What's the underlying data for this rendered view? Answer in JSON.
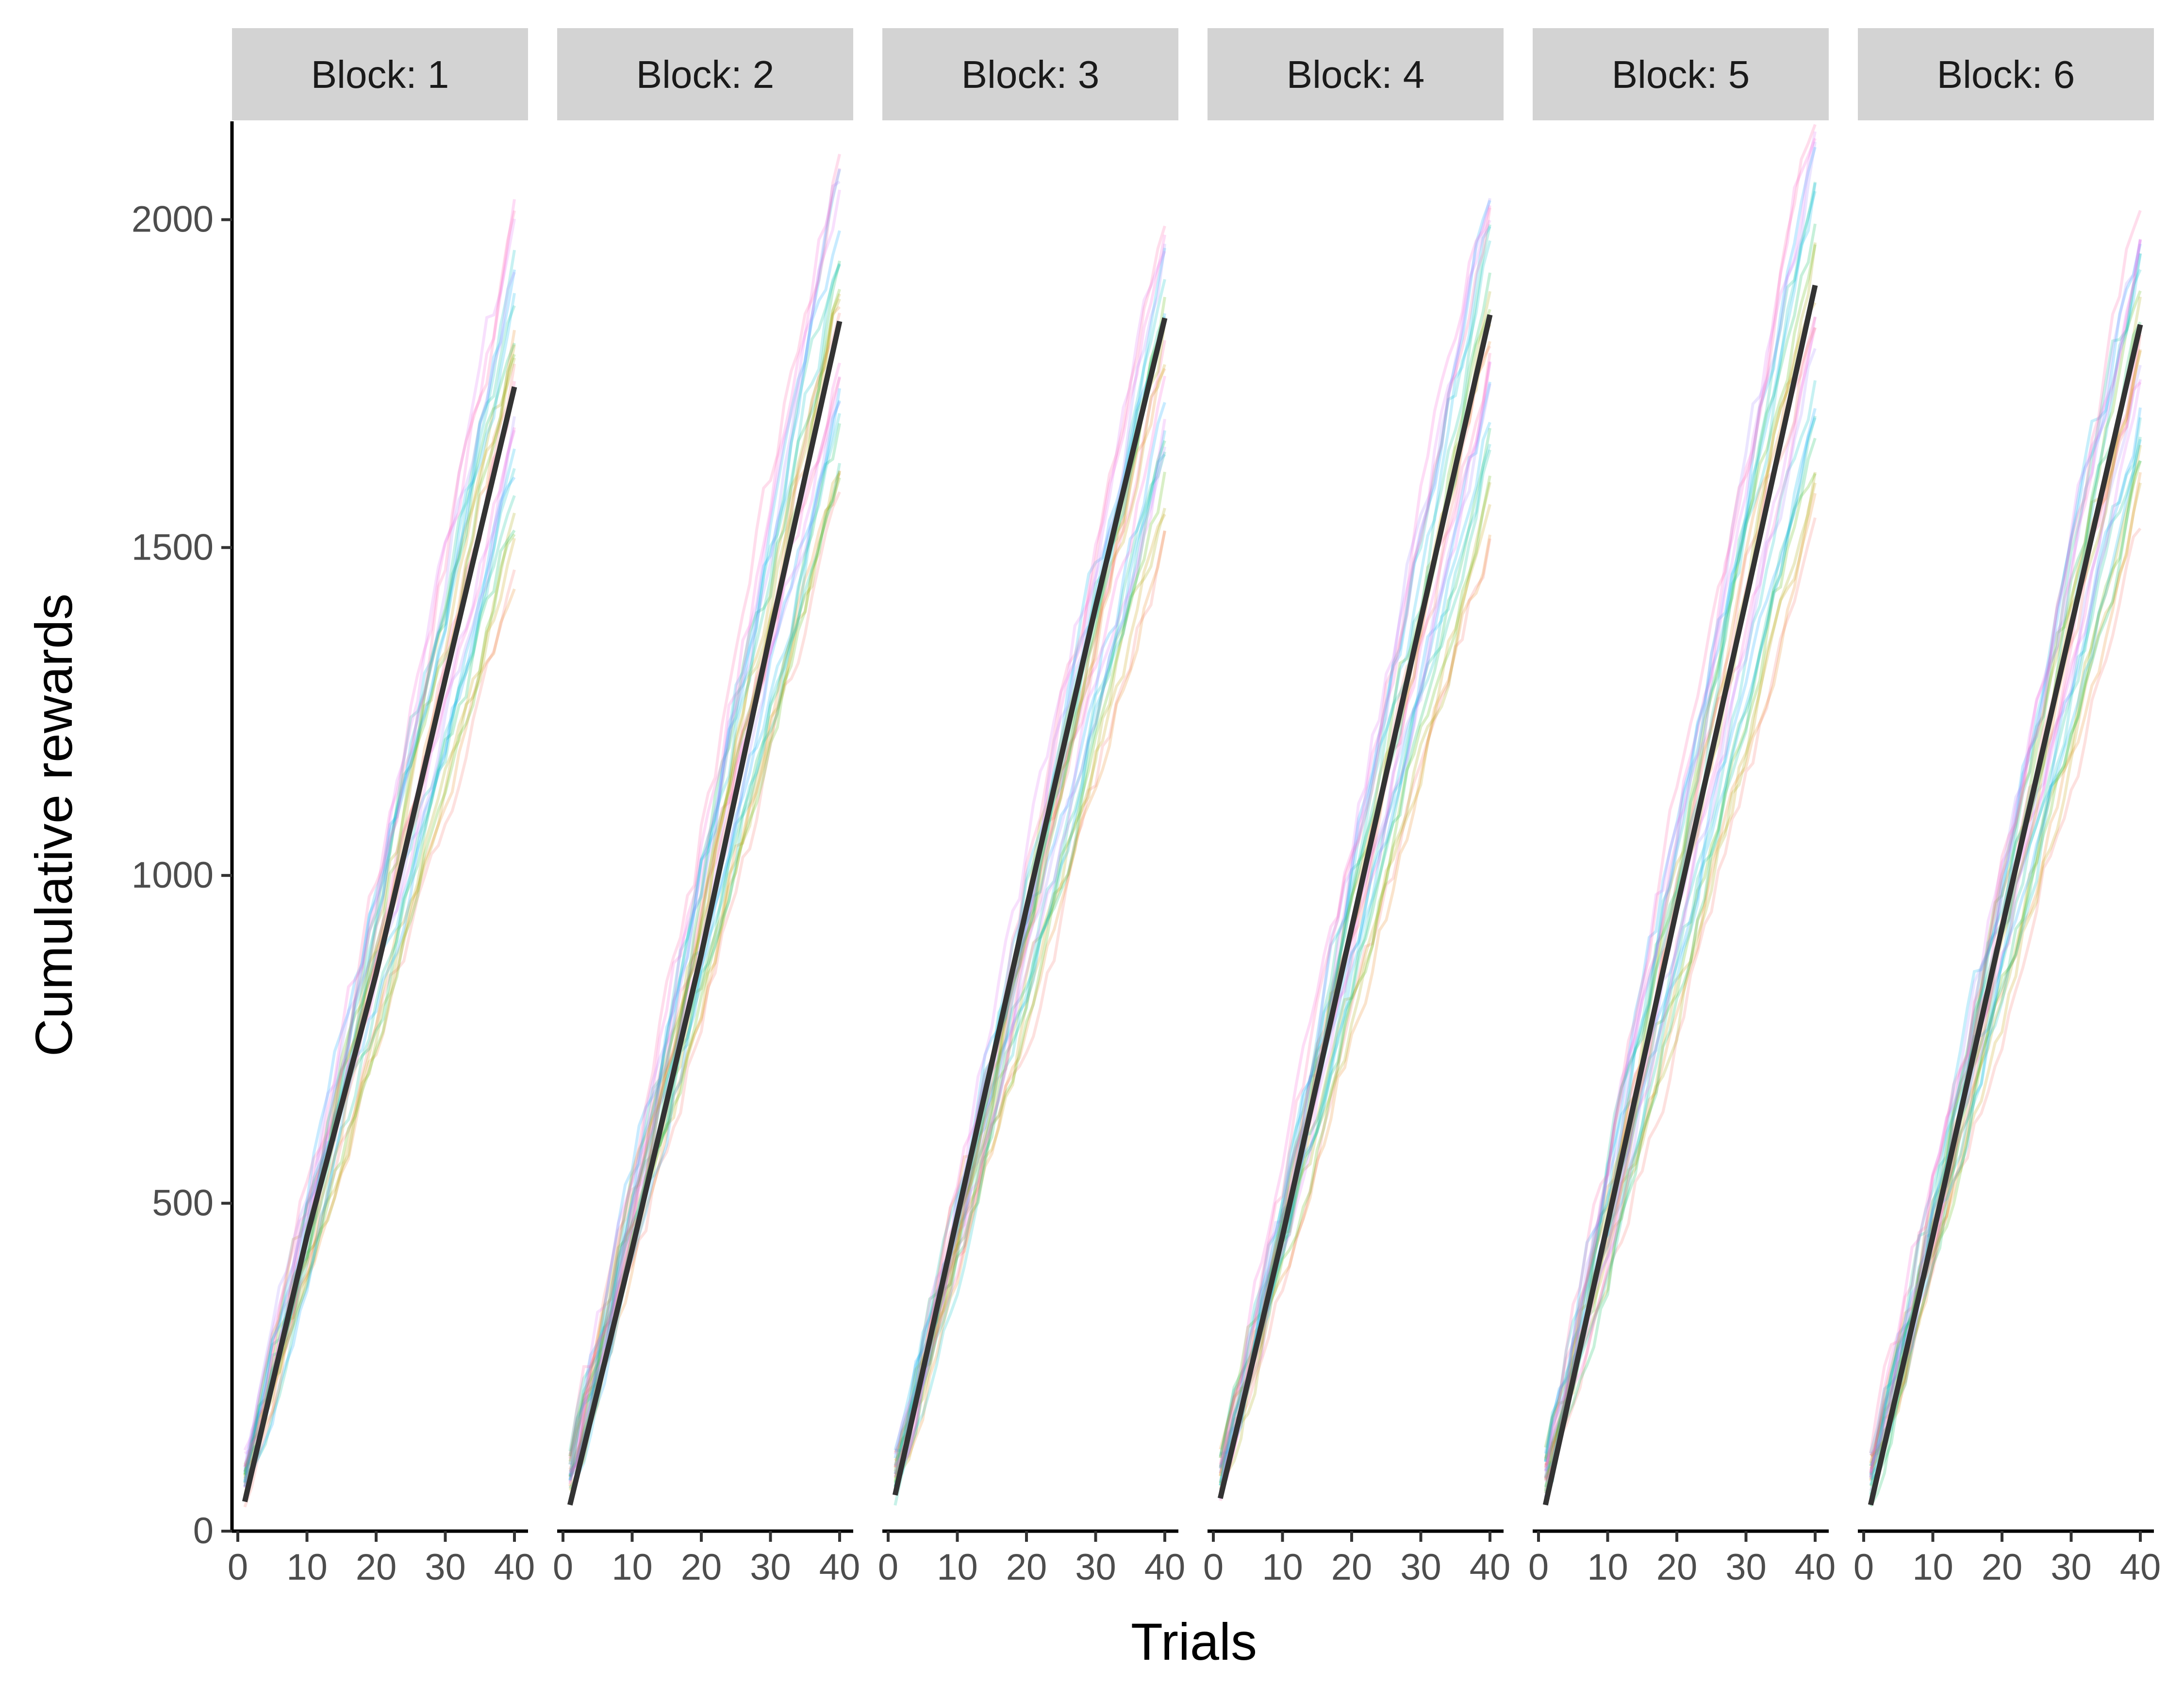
{
  "chart_data": {
    "type": "line",
    "title": "",
    "xlabel": "Trials",
    "ylabel": "Cumulative rewards",
    "xlim": [
      0,
      40
    ],
    "ylim": [
      0,
      2150
    ],
    "x_ticks": [
      0,
      10,
      20,
      30,
      40
    ],
    "y_ticks": [
      0,
      500,
      1000,
      1500,
      2000
    ],
    "grid": false,
    "legend": "none",
    "facet_label_prefix": "Block: ",
    "mean_line_color": "#333333",
    "strip_color": "#d3d3d3",
    "panels": [
      {
        "label": "Block: 1",
        "mean": {
          "x": [
            1,
            10,
            20,
            30,
            40
          ],
          "y": [
            45,
            450,
            850,
            1300,
            1745
          ]
        },
        "participants_end_range": [
          1440,
          2000
        ]
      },
      {
        "label": "Block: 2",
        "mean": {
          "x": [
            1,
            10,
            20,
            30,
            40
          ],
          "y": [
            40,
            430,
            880,
            1370,
            1845
          ]
        },
        "participants_end_range": [
          1540,
          2100
        ]
      },
      {
        "label": "Block: 3",
        "mean": {
          "x": [
            1,
            10,
            20,
            30,
            40
          ],
          "y": [
            55,
            480,
            950,
            1410,
            1850
          ]
        },
        "participants_end_range": [
          1520,
          2000
        ]
      },
      {
        "label": "Block: 4",
        "mean": {
          "x": [
            1,
            10,
            20,
            30,
            40
          ],
          "y": [
            50,
            450,
            920,
            1390,
            1855
          ]
        },
        "participants_end_range": [
          1500,
          2080
        ]
      },
      {
        "label": "Block: 5",
        "mean": {
          "x": [
            1,
            10,
            20,
            30,
            40
          ],
          "y": [
            40,
            470,
            950,
            1420,
            1900
          ]
        },
        "participants_end_range": [
          1520,
          2200
        ]
      },
      {
        "label": "Block: 6",
        "mean": {
          "x": [
            1,
            10,
            20,
            30,
            40
          ],
          "y": [
            40,
            450,
            920,
            1380,
            1840
          ]
        },
        "participants_end_range": [
          1540,
          2020
        ]
      }
    ],
    "participant_colors": [
      "#f8766d",
      "#e7861b",
      "#c49a00",
      "#a3a500",
      "#53b400",
      "#00bc56",
      "#00c094",
      "#00bfc4",
      "#00b6eb",
      "#06a4ff",
      "#a58aff",
      "#df70f8",
      "#fb61d7",
      "#ff66a8"
    ]
  }
}
